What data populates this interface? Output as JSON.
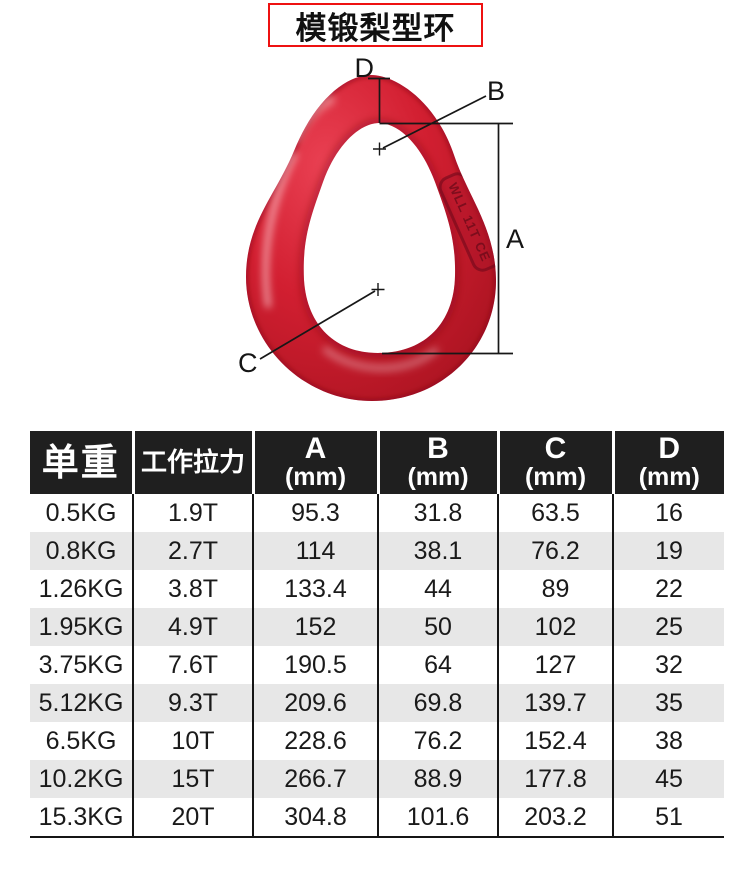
{
  "page": {
    "background": "#ffffff"
  },
  "title": {
    "text": "模锻梨型环",
    "border_color": "#ee1111",
    "text_color": "#111111"
  },
  "figure": {
    "dimension_labels": {
      "a": "A",
      "b": "B",
      "c": "C",
      "d": "D"
    },
    "ring_color": "#d21f31",
    "ring_shadow_color": "#8f1120",
    "ring_highlight_color": "#ffd7da",
    "stamp_text": "WLL 11T CE"
  },
  "table": {
    "colors": {
      "header_bg": "#1f1f1f",
      "header_text": "#ffffff",
      "alt_row_bg": "#e7e7e7",
      "body_text": "#1a1a1a",
      "grid_line": "#151515"
    },
    "headers": [
      {
        "label": "单重",
        "sub": ""
      },
      {
        "label": "工作拉力",
        "sub": ""
      },
      {
        "label": "A",
        "sub": "(mm)"
      },
      {
        "label": "B",
        "sub": "(mm)"
      },
      {
        "label": "C",
        "sub": "(mm)"
      },
      {
        "label": "D",
        "sub": "(mm)"
      }
    ],
    "rows": [
      [
        "0.5KG",
        "1.9T",
        "95.3",
        "31.8",
        "63.5",
        "16"
      ],
      [
        "0.8KG",
        "2.7T",
        "114",
        "38.1",
        "76.2",
        "19"
      ],
      [
        "1.26KG",
        "3.8T",
        "133.4",
        "44",
        "89",
        "22"
      ],
      [
        "1.95KG",
        "4.9T",
        "152",
        "50",
        "102",
        "25"
      ],
      [
        "3.75KG",
        "7.6T",
        "190.5",
        "64",
        "127",
        "32"
      ],
      [
        "5.12KG",
        "9.3T",
        "209.6",
        "69.8",
        "139.7",
        "35"
      ],
      [
        "6.5KG",
        "10T",
        "228.6",
        "76.2",
        "152.4",
        "38"
      ],
      [
        "10.2KG",
        "15T",
        "266.7",
        "88.9",
        "177.8",
        "45"
      ],
      [
        "15.3KG",
        "20T",
        "304.8",
        "101.6",
        "203.2",
        "51"
      ]
    ]
  }
}
